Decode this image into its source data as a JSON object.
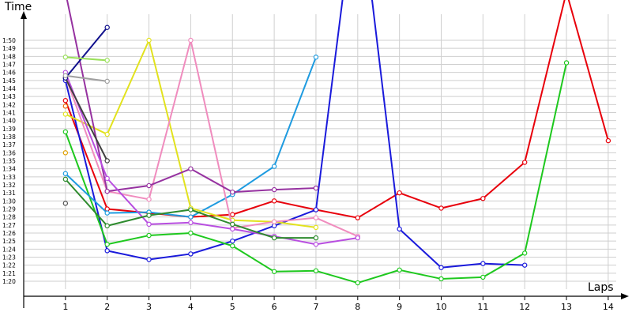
{
  "chart_data": {
    "type": "line",
    "xlabel": "Laps",
    "ylabel": "Time",
    "x_ticks": [
      "1",
      "2",
      "3",
      "4",
      "5",
      "6",
      "7",
      "8",
      "9",
      "10",
      "11",
      "12",
      "13",
      "14"
    ],
    "y_ticks": [
      "1:20",
      "1:21",
      "1:22",
      "1:23",
      "1:24",
      "1:25",
      "1:26",
      "1:27",
      "1:28",
      "1:29",
      "1:30",
      "1:31",
      "1:32",
      "1:33",
      "1:34",
      "1:35",
      "1:36",
      "1:37",
      "1:38",
      "1:39",
      "1:40",
      "1:41",
      "1:42",
      "1:43",
      "1:44",
      "1:45",
      "1:46",
      "1:47",
      "1:48",
      "1:49",
      "1:50"
    ],
    "xlim": [
      0,
      14
    ],
    "ylim_seconds": [
      78,
      112
    ],
    "grid": true,
    "series": [
      {
        "color": "#e8000b",
        "x": [
          1,
          2,
          3,
          4,
          5,
          6,
          7,
          8,
          9,
          10,
          11,
          12,
          13,
          14
        ],
        "y_seconds": [
          102.5,
          89.0,
          88.5,
          88.0,
          88.3,
          90.0,
          88.9,
          87.9,
          91.0,
          89.1,
          90.3,
          94.8,
          116.0,
          97.5
        ]
      },
      {
        "color": "#1a1adb",
        "x": [
          1,
          2,
          3,
          4,
          5,
          6,
          7,
          8,
          9,
          10,
          11,
          12
        ],
        "y_seconds": [
          105.0,
          83.8,
          82.7,
          83.4,
          85.0,
          86.9,
          88.9,
          130.0,
          86.5,
          81.7,
          82.2,
          82.0
        ]
      },
      {
        "color": "#1ec81e",
        "x": [
          1,
          2,
          3,
          4,
          5,
          6,
          7,
          8,
          9,
          10,
          11,
          12,
          13
        ],
        "y_seconds": [
          98.6,
          84.6,
          85.7,
          86.0,
          84.4,
          81.2,
          81.3,
          79.8,
          81.4,
          80.3,
          80.5,
          83.5,
          107.2
        ]
      },
      {
        "color": "#1e9be0",
        "x": [
          1,
          2,
          3,
          4,
          5,
          6,
          7
        ],
        "y_seconds": [
          93.4,
          88.5,
          88.6,
          88.0,
          90.8,
          94.3,
          107.9
        ]
      },
      {
        "color": "#e2e21e",
        "x": [
          1,
          2,
          3,
          4,
          5,
          6,
          7
        ],
        "y_seconds": [
          100.8,
          98.3,
          110.0,
          89.1,
          87.6,
          87.4,
          86.7
        ]
      },
      {
        "color": "#f08cbe",
        "x": [
          1,
          2,
          3,
          4,
          5,
          6,
          7,
          8
        ],
        "y_seconds": [
          105.5,
          91.2,
          90.2,
          110.0,
          86.6,
          87.4,
          87.9,
          85.6
        ]
      },
      {
        "color": "#9632a0",
        "x": [
          1,
          2,
          3,
          4,
          5,
          6,
          7
        ],
        "y_seconds": [
          116.0,
          91.2,
          91.9,
          94.0,
          91.1,
          91.4,
          91.6
        ]
      },
      {
        "color": "#b84ee0",
        "x": [
          1,
          2,
          3,
          4,
          5,
          6,
          7,
          8
        ],
        "y_seconds": [
          106.0,
          92.8,
          87.1,
          87.3,
          86.5,
          85.6,
          84.6,
          85.4
        ]
      },
      {
        "color": "#2e8b2e",
        "x": [
          1,
          2,
          3,
          4,
          5,
          6,
          7
        ],
        "y_seconds": [
          92.7,
          86.9,
          88.2,
          88.9,
          87.1,
          85.4,
          85.4
        ]
      },
      {
        "color": "#404040",
        "x": [
          1,
          2
        ],
        "y_seconds": [
          105.3,
          95.0
        ]
      },
      {
        "color": "#10108c",
        "x": [
          1,
          2
        ],
        "y_seconds": [
          105.3,
          111.6
        ]
      },
      {
        "color": "#9ae05a",
        "x": [
          1,
          2
        ],
        "y_seconds": [
          107.9,
          107.5
        ]
      },
      {
        "color": "#a0a0a0",
        "x": [
          1,
          2
        ],
        "y_seconds": [
          105.6,
          104.9
        ]
      },
      {
        "color": "#505050",
        "x": [
          1
        ],
        "y_seconds": [
          89.7
        ]
      },
      {
        "color": "#e0a000",
        "x": [
          1
        ],
        "y_seconds": [
          96.0
        ]
      },
      {
        "color": "#e86a00",
        "x": [
          1
        ],
        "y_seconds": [
          101.8
        ]
      }
    ]
  }
}
